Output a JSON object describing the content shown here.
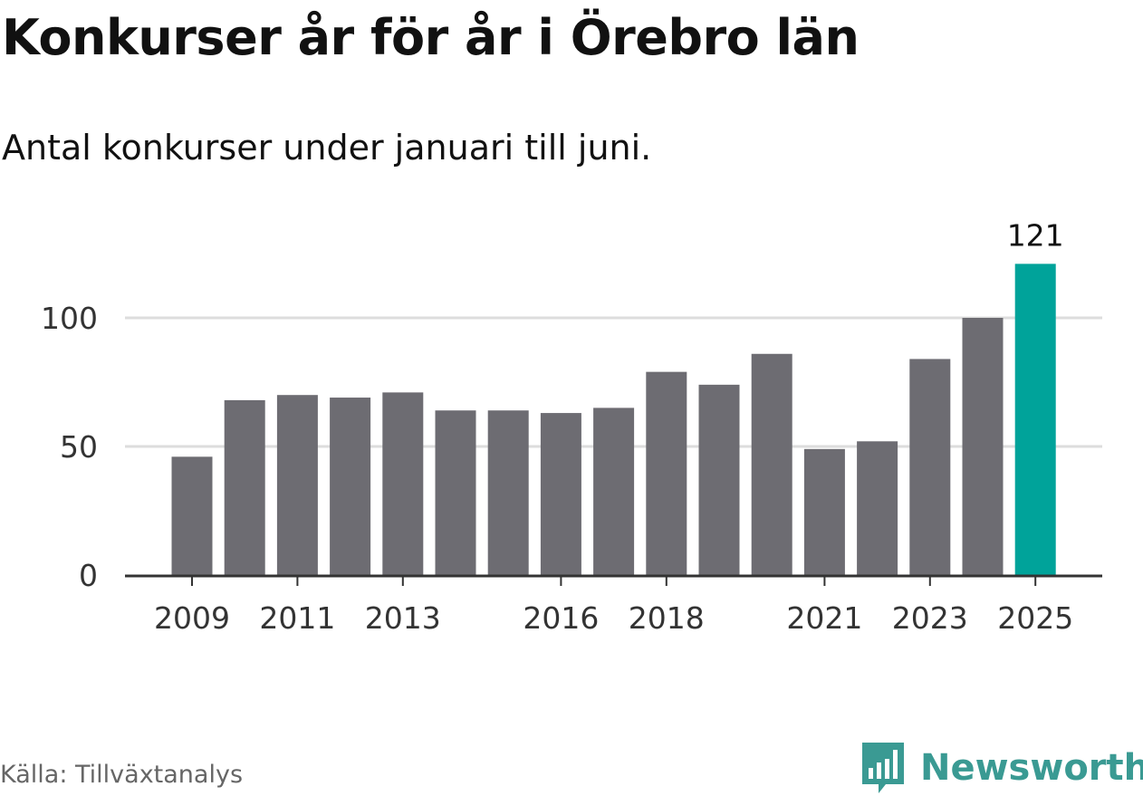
{
  "header": {
    "title": "Konkurser år för år i Örebro län",
    "subtitle": "Antal konkurser under januari till juni."
  },
  "footer": {
    "source": "Källa: Tillväxtanalys",
    "brand": "Newsworthy"
  },
  "colors": {
    "bar": "#6d6c72",
    "highlight": "#00a39a",
    "grid": "#dddddd",
    "axis": "#333333",
    "brand": "#3a9a93"
  },
  "chart_data": {
    "type": "bar",
    "categories": [
      "2009",
      "2010",
      "2011",
      "2012",
      "2013",
      "2014",
      "2015",
      "2016",
      "2017",
      "2018",
      "2019",
      "2020",
      "2021",
      "2022",
      "2023",
      "2024",
      "2025"
    ],
    "values": [
      46,
      68,
      70,
      69,
      71,
      64,
      64,
      63,
      65,
      79,
      74,
      86,
      49,
      52,
      84,
      100,
      121
    ],
    "tick_labels": [
      "2009",
      "2011",
      "2013",
      "2016",
      "2018",
      "2021",
      "2023",
      "2025"
    ],
    "y_ticks": [
      0,
      50,
      100
    ],
    "ylim": [
      0,
      125
    ],
    "highlight_category": "2025",
    "data_labels": [
      {
        "category": "2025",
        "text": "121"
      }
    ],
    "grid": true,
    "title": "Konkurser år för år i Örebro län",
    "xlabel": "",
    "ylabel": ""
  }
}
